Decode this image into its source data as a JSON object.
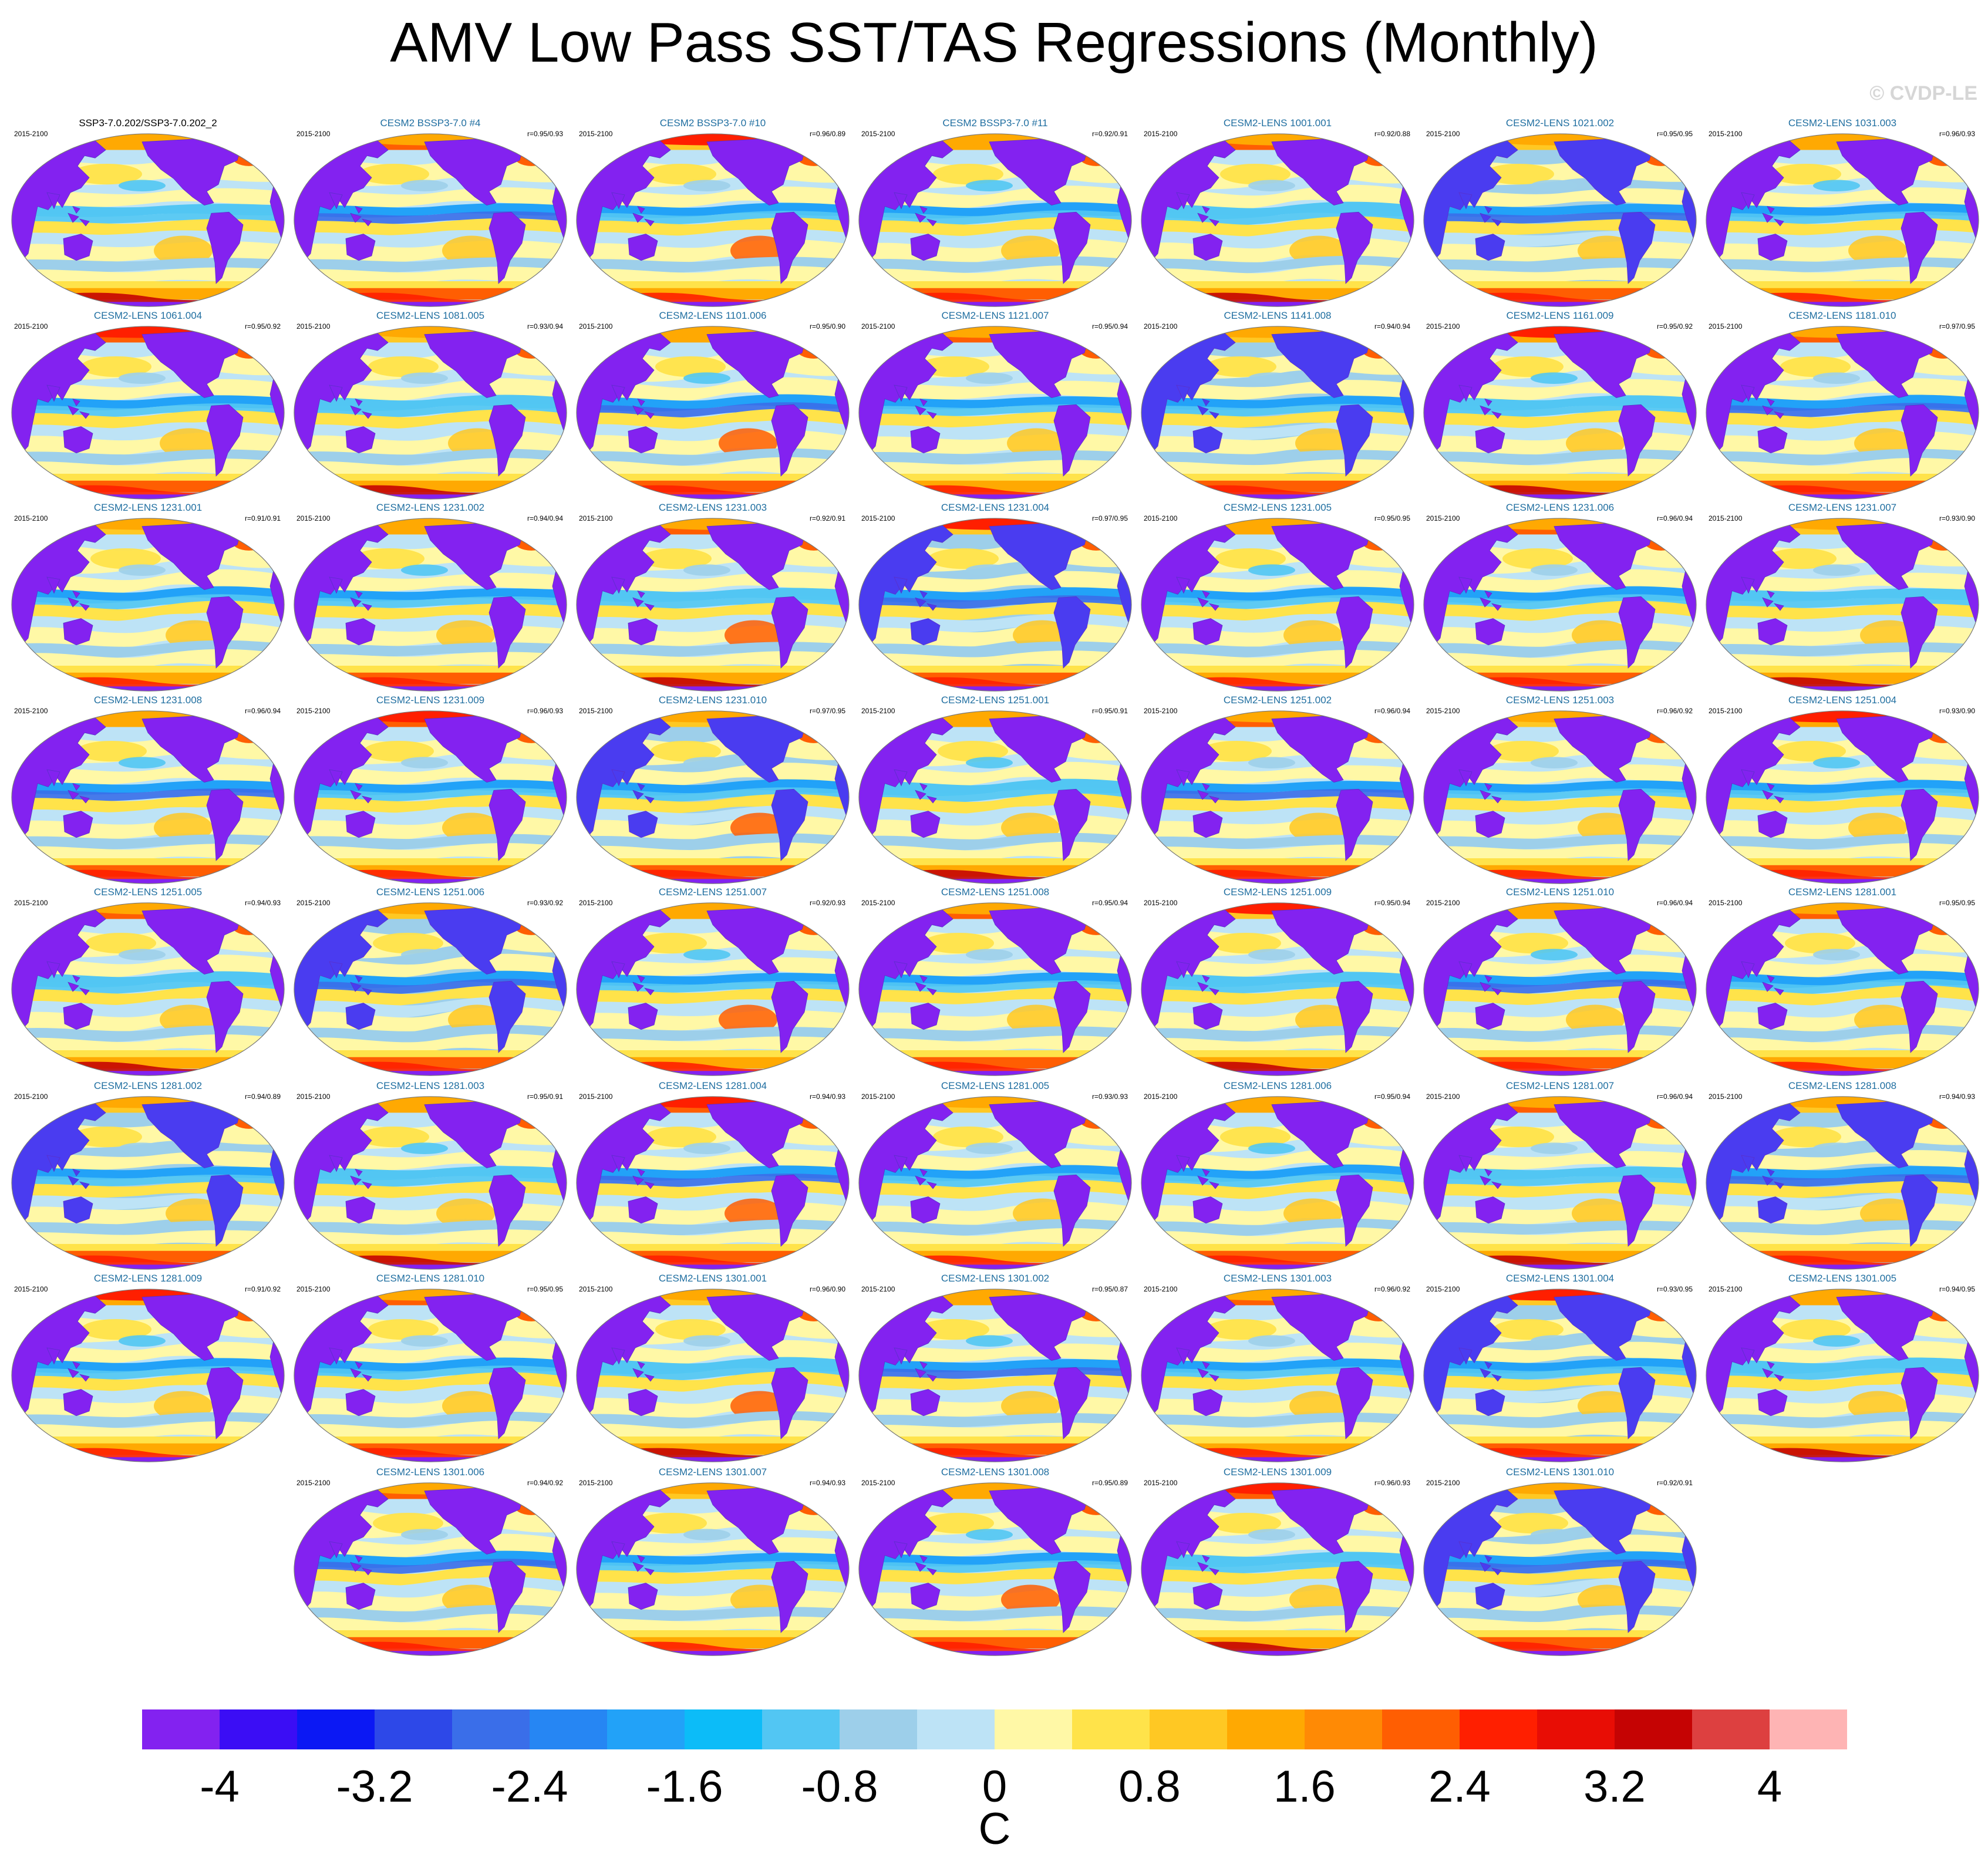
{
  "title": "AMV Low Pass SST/TAS Regressions (Monthly)",
  "watermark": "© CVDP-LE",
  "period": "2015-2100",
  "panels": [
    {
      "name": "SSP3-7.0.202/SSP3-7.0.202_2",
      "r": "",
      "variant": 0
    },
    {
      "name": "CESM2 BSSP3-7.0 #4",
      "r": "r=0.95/0.93",
      "variant": 1
    },
    {
      "name": "CESM2 BSSP3-7.0 #10",
      "r": "r=0.96/0.89",
      "variant": 2
    },
    {
      "name": "CESM2 BSSP3-7.0 #11",
      "r": "r=0.92/0.91",
      "variant": 3
    },
    {
      "name": "CESM2-LENS 1001.001",
      "r": "r=0.92/0.88",
      "variant": 4
    },
    {
      "name": "CESM2-LENS 1021.002",
      "r": "r=0.95/0.95",
      "variant": 5
    },
    {
      "name": "CESM2-LENS 1031.003",
      "r": "r=0.96/0.93",
      "variant": 6
    },
    {
      "name": "CESM2-LENS 1061.004",
      "r": "r=0.95/0.92",
      "variant": 7
    },
    {
      "name": "CESM2-LENS 1081.005",
      "r": "r=0.93/0.94",
      "variant": 8
    },
    {
      "name": "CESM2-LENS 1101.006",
      "r": "r=0.95/0.90",
      "variant": 9
    },
    {
      "name": "CESM2-LENS 1121.007",
      "r": "r=0.95/0.94",
      "variant": 10
    },
    {
      "name": "CESM2-LENS 1141.008",
      "r": "r=0.94/0.94",
      "variant": 11
    },
    {
      "name": "CESM2-LENS 1161.009",
      "r": "r=0.95/0.92",
      "variant": 12
    },
    {
      "name": "CESM2-LENS 1181.010",
      "r": "r=0.97/0.95",
      "variant": 13
    },
    {
      "name": "CESM2-LENS 1231.001",
      "r": "r=0.91/0.91",
      "variant": 14
    },
    {
      "name": "CESM2-LENS 1231.002",
      "r": "r=0.94/0.94",
      "variant": 15
    },
    {
      "name": "CESM2-LENS 1231.003",
      "r": "r=0.92/0.91",
      "variant": 16
    },
    {
      "name": "CESM2-LENS 1231.004",
      "r": "r=0.97/0.95",
      "variant": 17
    },
    {
      "name": "CESM2-LENS 1231.005",
      "r": "r=0.95/0.95",
      "variant": 18
    },
    {
      "name": "CESM2-LENS 1231.006",
      "r": "r=0.96/0.94",
      "variant": 19
    },
    {
      "name": "CESM2-LENS 1231.007",
      "r": "r=0.93/0.90",
      "variant": 20
    },
    {
      "name": "CESM2-LENS 1231.008",
      "r": "r=0.96/0.94",
      "variant": 21
    },
    {
      "name": "CESM2-LENS 1231.009",
      "r": "r=0.96/0.93",
      "variant": 22
    },
    {
      "name": "CESM2-LENS 1231.010",
      "r": "r=0.97/0.95",
      "variant": 23
    },
    {
      "name": "CESM2-LENS 1251.001",
      "r": "r=0.95/0.91",
      "variant": 24
    },
    {
      "name": "CESM2-LENS 1251.002",
      "r": "r=0.96/0.94",
      "variant": 25
    },
    {
      "name": "CESM2-LENS 1251.003",
      "r": "r=0.96/0.92",
      "variant": 26
    },
    {
      "name": "CESM2-LENS 1251.004",
      "r": "r=0.93/0.90",
      "variant": 27
    },
    {
      "name": "CESM2-LENS 1251.005",
      "r": "r=0.94/0.93",
      "variant": 28
    },
    {
      "name": "CESM2-LENS 1251.006",
      "r": "r=0.93/0.92",
      "variant": 29
    },
    {
      "name": "CESM2-LENS 1251.007",
      "r": "r=0.92/0.93",
      "variant": 30
    },
    {
      "name": "CESM2-LENS 1251.008",
      "r": "r=0.95/0.94",
      "variant": 31
    },
    {
      "name": "CESM2-LENS 1251.009",
      "r": "r=0.95/0.94",
      "variant": 32
    },
    {
      "name": "CESM2-LENS 1251.010",
      "r": "r=0.96/0.94",
      "variant": 33
    },
    {
      "name": "CESM2-LENS 1281.001",
      "r": "r=0.95/0.95",
      "variant": 34
    },
    {
      "name": "CESM2-LENS 1281.002",
      "r": "r=0.94/0.89",
      "variant": 35
    },
    {
      "name": "CESM2-LENS 1281.003",
      "r": "r=0.95/0.91",
      "variant": 36
    },
    {
      "name": "CESM2-LENS 1281.004",
      "r": "r=0.94/0.93",
      "variant": 37
    },
    {
      "name": "CESM2-LENS 1281.005",
      "r": "r=0.93/0.93",
      "variant": 38
    },
    {
      "name": "CESM2-LENS 1281.006",
      "r": "r=0.95/0.94",
      "variant": 39
    },
    {
      "name": "CESM2-LENS 1281.007",
      "r": "r=0.96/0.94",
      "variant": 40
    },
    {
      "name": "CESM2-LENS 1281.008",
      "r": "r=0.94/0.93",
      "variant": 41
    },
    {
      "name": "CESM2-LENS 1281.009",
      "r": "r=0.91/0.92",
      "variant": 42
    },
    {
      "name": "CESM2-LENS 1281.010",
      "r": "r=0.95/0.95",
      "variant": 43
    },
    {
      "name": "CESM2-LENS 1301.001",
      "r": "r=0.96/0.90",
      "variant": 44
    },
    {
      "name": "CESM2-LENS 1301.002",
      "r": "r=0.95/0.87",
      "variant": 45
    },
    {
      "name": "CESM2-LENS 1301.003",
      "r": "r=0.96/0.92",
      "variant": 46
    },
    {
      "name": "CESM2-LENS 1301.004",
      "r": "r=0.93/0.95",
      "variant": 47
    },
    {
      "name": "CESM2-LENS 1301.005",
      "r": "r=0.94/0.95",
      "variant": 48
    },
    {
      "name": "CESM2-LENS 1301.006",
      "r": "r=0.94/0.92",
      "variant": 49
    },
    {
      "name": "CESM2-LENS 1301.007",
      "r": "r=0.94/0.93",
      "variant": 50
    },
    {
      "name": "CESM2-LENS 1301.008",
      "r": "r=0.95/0.89",
      "variant": 51
    },
    {
      "name": "CESM2-LENS 1301.009",
      "r": "r=0.96/0.93",
      "variant": 52
    },
    {
      "name": "CESM2-LENS 1301.010",
      "r": "r=0.92/0.91",
      "variant": 53
    }
  ],
  "colorbar": {
    "colors": [
      "#8322f0",
      "#3b0df5",
      "#0b18f4",
      "#2d48e8",
      "#3a6ee9",
      "#2686f3",
      "#22a2f8",
      "#0cbcf8",
      "#52c6f3",
      "#9dcfea",
      "#bde3f6",
      "#fff8a6",
      "#ffe34a",
      "#ffc823",
      "#ffa902",
      "#ff8a05",
      "#ff5e02",
      "#ff1f00",
      "#e80d05",
      "#c50303",
      "#dd4040",
      "#feb4b4"
    ],
    "labels": [
      "-4",
      "-3.2",
      "-2.4",
      "-1.6",
      "-0.8",
      "0",
      "0.8",
      "1.6",
      "2.4",
      "3.2",
      "4"
    ],
    "units": "C"
  }
}
